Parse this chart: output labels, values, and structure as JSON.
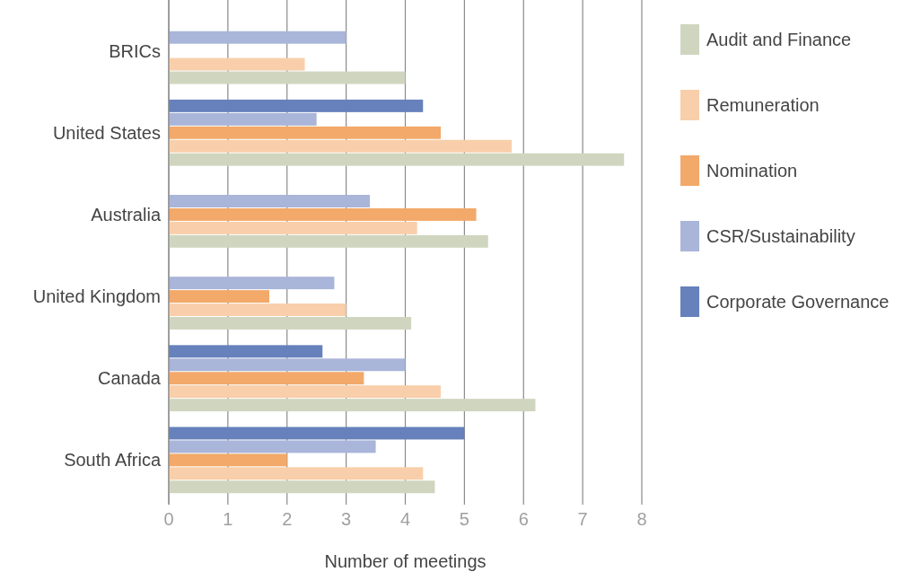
{
  "chart_data": {
    "type": "bar",
    "orientation": "horizontal",
    "xlabel": "Number of meetings",
    "categories": [
      "BRICs",
      "United States",
      "Australia",
      "United Kingdom",
      "Canada",
      "South Africa"
    ],
    "series": [
      {
        "name": "Audit and Finance",
        "color": "#d0d5bf",
        "values": [
          4.0,
          7.7,
          5.4,
          4.1,
          6.2,
          4.5
        ]
      },
      {
        "name": "Remuneration",
        "color": "#f8cfaa",
        "values": [
          2.3,
          5.8,
          4.2,
          3.0,
          4.6,
          4.3
        ]
      },
      {
        "name": "Nomination",
        "color": "#f2a96a",
        "values": [
          null,
          4.6,
          5.2,
          1.7,
          3.3,
          2.0
        ]
      },
      {
        "name": "CSR/Sustainability",
        "color": "#a9b5d9",
        "values": [
          3.0,
          2.5,
          3.4,
          2.8,
          4.0,
          3.5
        ]
      },
      {
        "name": "Corporate Governance",
        "color": "#6681bb",
        "values": [
          null,
          4.3,
          null,
          null,
          2.6,
          5.0
        ]
      }
    ],
    "xlim": [
      0,
      8
    ],
    "xticks": [
      0,
      1,
      2,
      3,
      4,
      5,
      6,
      7,
      8
    ],
    "grid": "x",
    "legend": "right"
  }
}
